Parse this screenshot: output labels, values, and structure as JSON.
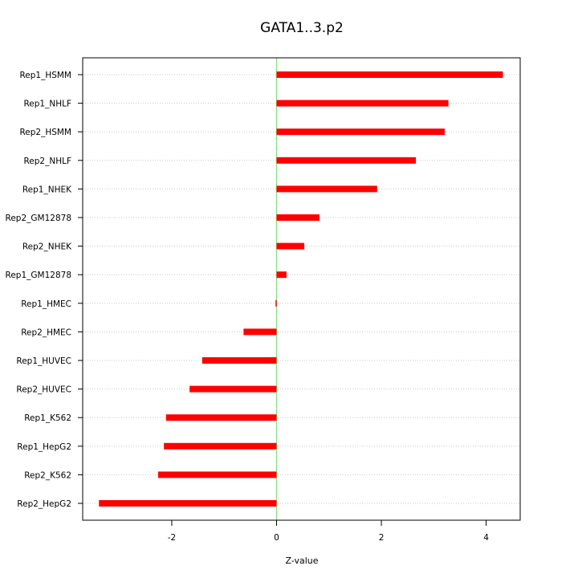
{
  "chart_data": {
    "type": "bar",
    "orientation": "horizontal",
    "title": "GATA1..3.p2",
    "xlabel": "Z-value",
    "ylabel": "",
    "categories": [
      "Rep1_HSMM",
      "Rep1_NHLF",
      "Rep2_HSMM",
      "Rep2_NHLF",
      "Rep1_NHEK",
      "Rep2_GM12878",
      "Rep2_NHEK",
      "Rep1_GM12878",
      "Rep1_HMEC",
      "Rep2_HMEC",
      "Rep1_HUVEC",
      "Rep2_HUVEC",
      "Rep1_K562",
      "Rep1_HepG2",
      "Rep2_K562",
      "Rep2_HepG2"
    ],
    "values": [
      4.32,
      3.28,
      3.21,
      2.66,
      1.92,
      0.82,
      0.53,
      0.19,
      -0.02,
      -0.63,
      -1.42,
      -1.66,
      -2.11,
      -2.15,
      -2.26,
      -3.39
    ],
    "xlim": [
      -3.7,
      4.65
    ],
    "xticks": [
      -2,
      0,
      2,
      4
    ],
    "xtick_labels": [
      "-2",
      "0",
      "2",
      "4"
    ],
    "grid": "horizontal dotted per category",
    "zero_line": true,
    "colors": {
      "bar": "#ff0000",
      "zero_line": "#7fe07f",
      "grid": "#c8c8c8",
      "axis": "#000000"
    }
  }
}
